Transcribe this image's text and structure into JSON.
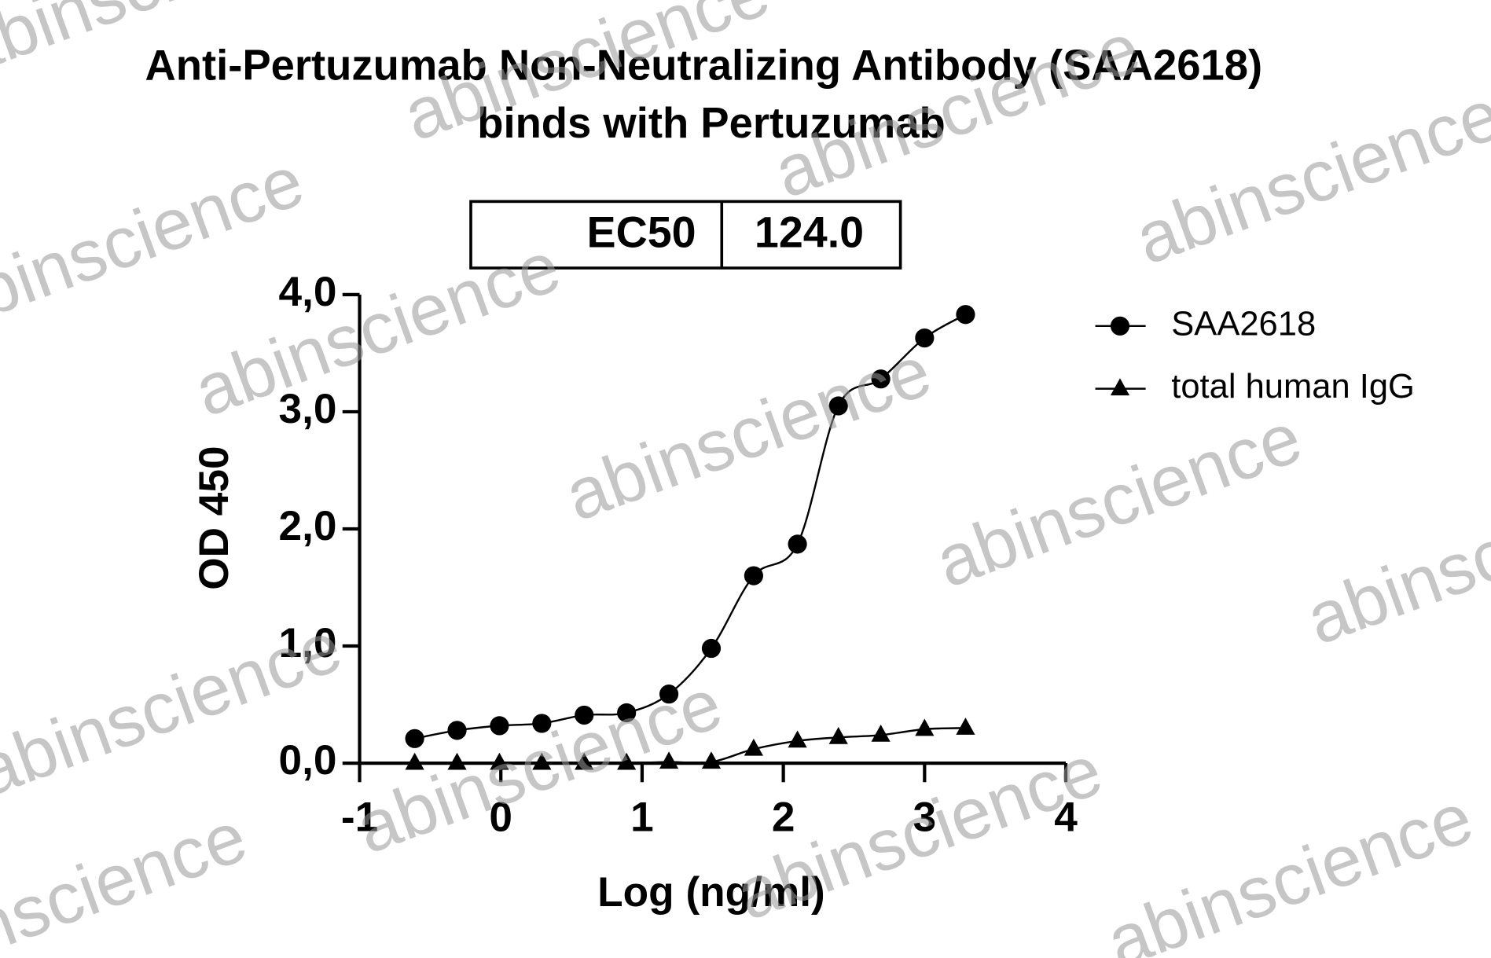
{
  "chart_data": {
    "type": "scatter",
    "title": [
      "Anti-Pertuzumab Non-Neutralizing Antibody (SAA2618)",
      "binds with Pertuzumab"
    ],
    "ec50_table": {
      "label": "EC50",
      "value": "124.0"
    },
    "xlabel": "Log (ng/ml)",
    "ylabel": "OD 450",
    "xlim": [
      -1,
      4
    ],
    "xticks": [
      -1,
      0,
      1,
      2,
      3,
      4
    ],
    "ylim": [
      0,
      4
    ],
    "yticks": [
      {
        "value": 0,
        "label": "0,0"
      },
      {
        "value": 1,
        "label": "1,0"
      },
      {
        "value": 2,
        "label": "2,0"
      },
      {
        "value": 3,
        "label": "3,0"
      },
      {
        "value": 4,
        "label": "4,0"
      }
    ],
    "legend": "top-right",
    "watermark": "abinscience",
    "series": [
      {
        "name": "SAA2618",
        "color": "#000000",
        "marker": "circle",
        "x": [
          -0.61,
          -0.31,
          -0.01,
          0.29,
          0.59,
          0.89,
          1.19,
          1.49,
          1.79,
          2.1,
          2.39,
          2.69,
          3.0,
          3.29
        ],
        "values": [
          0.21,
          0.28,
          0.32,
          0.34,
          0.41,
          0.43,
          0.59,
          0.98,
          1.6,
          1.87,
          3.05,
          3.28,
          3.63,
          3.83
        ]
      },
      {
        "name": "total human IgG",
        "color": "#000000",
        "marker": "triangle",
        "x": [
          -0.61,
          -0.31,
          -0.01,
          0.29,
          0.59,
          0.89,
          1.19,
          1.49,
          1.79,
          2.1,
          2.39,
          2.69,
          3.0,
          3.29
        ],
        "values": [
          0,
          0,
          0,
          0,
          0,
          0,
          0.01,
          0.01,
          0.12,
          0.19,
          0.22,
          0.24,
          0.29,
          0.3
        ]
      }
    ]
  }
}
